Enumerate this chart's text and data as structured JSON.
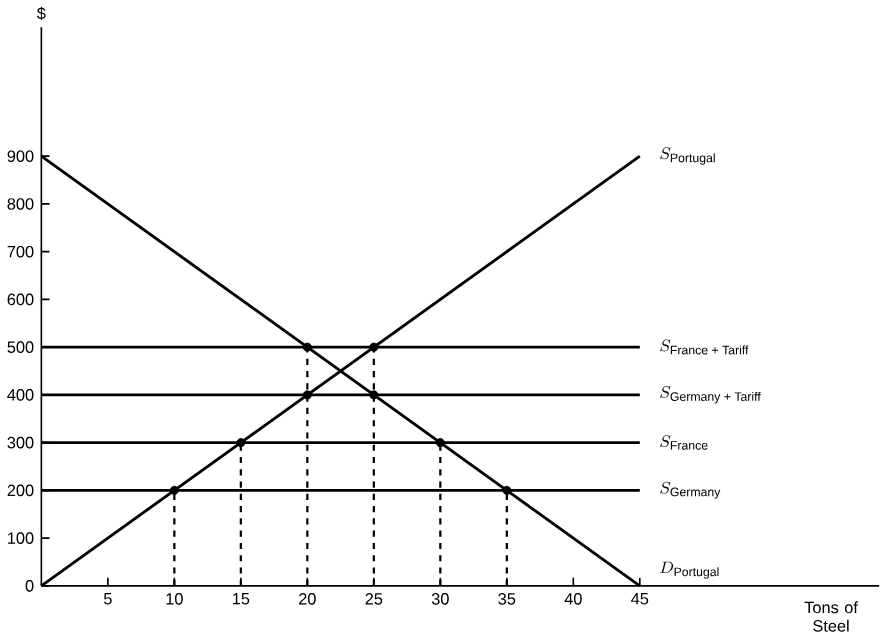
{
  "chart_data": {
    "type": "line",
    "ylabel": "$",
    "xlabel": "Tons of Steel",
    "xlim": [
      0,
      63
    ],
    "ylim": [
      0,
      1170
    ],
    "xticks": [
      5,
      10,
      15,
      20,
      25,
      30,
      35,
      40,
      45
    ],
    "yticks": [
      0,
      100,
      200,
      300,
      400,
      500,
      600,
      700,
      800,
      900
    ],
    "grid": false,
    "series": [
      {
        "name": "S_{\\text{Portugal}}",
        "color": "#000000",
        "x": [
          0,
          45
        ],
        "values": [
          0,
          900
        ],
        "line_style": "solid",
        "marker": "none"
      },
      {
        "name": "S_{\\text{France + Tariff}}",
        "color": "#000000",
        "x": [
          0,
          45
        ],
        "values": [
          500,
          500
        ],
        "line_style": "solid",
        "marker": "none"
      },
      {
        "name": "S_{\\text{Germany + Tariff}}",
        "color": "#000000",
        "x": [
          0,
          45
        ],
        "values": [
          400,
          400
        ],
        "line_style": "solid",
        "marker": "none"
      },
      {
        "name": "S_{\\text{France}}",
        "color": "#000000",
        "x": [
          0,
          45
        ],
        "values": [
          300,
          300
        ],
        "line_style": "solid",
        "marker": "none"
      },
      {
        "name": "S_{\\text{Germany}}",
        "color": "#000000",
        "x": [
          0,
          45
        ],
        "values": [
          200,
          200
        ],
        "line_style": "solid",
        "marker": "none"
      },
      {
        "name": "D_{\\text{Portugal}}",
        "color": "#000000",
        "x": [
          0,
          45
        ],
        "values": [
          900,
          0
        ],
        "line_style": "solid",
        "marker": "none"
      },
      {
        "type": "scatter",
        "color": "#000000",
        "x": [
          10,
          15,
          20,
          25,
          20,
          25,
          30,
          35
        ],
        "values": [
          200,
          300,
          500,
          500,
          400,
          400,
          300,
          200
        ],
        "marker": "circle",
        "line_style": "dashed",
        "errors": [
          [
            0,
            200
          ],
          [
            0,
            300
          ],
          [
            0,
            500
          ],
          [
            0,
            500
          ],
          null,
          null,
          [
            0,
            300
          ],
          [
            0,
            200
          ]
        ]
      }
    ]
  }
}
